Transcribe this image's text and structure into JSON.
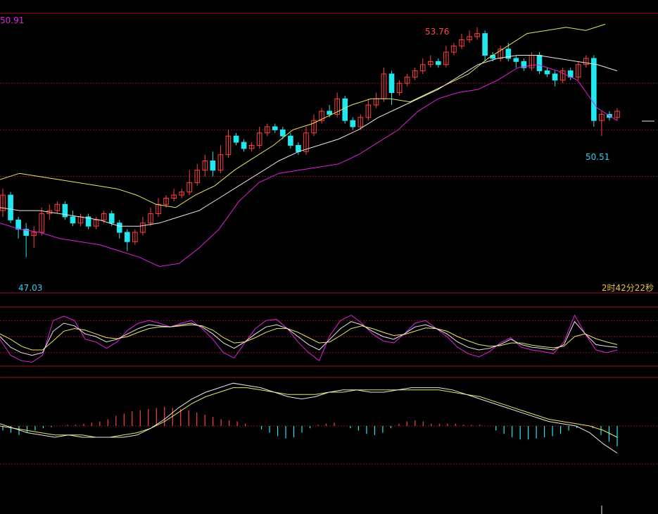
{
  "labels": {
    "top_price": "50.91",
    "high_marker": "53.76",
    "low_marker": "50.51",
    "min_marker": "47.03",
    "countdown": "2时42分22秒"
  },
  "colors": {
    "background": "#000000",
    "frame": "#a01020",
    "grid": "#8a1020",
    "up": "#ff4040",
    "down": "#20e8f0",
    "ma_white": "#e8e8e8",
    "ma_yellow": "#e8e860",
    "band_magenta": "#e020e0",
    "label_magenta": "#e020e0",
    "label_red": "#ff4848",
    "label_cyan": "#30d0f0",
    "label_timer": "#e8c040"
  },
  "chart_data": {
    "type": "candlestick",
    "price_axis": {
      "min": 46.5,
      "max": 55.0,
      "gridlines": [
        53.0,
        51.5,
        50.0
      ]
    },
    "candles": [
      [
        48.9,
        49.4,
        48.7,
        49.6
      ],
      [
        49.4,
        48.6,
        48.5,
        49.5
      ],
      [
        48.6,
        48.3,
        48.0,
        48.7
      ],
      [
        48.3,
        48.1,
        47.4,
        48.5
      ],
      [
        48.1,
        48.2,
        47.7,
        48.4
      ],
      [
        48.2,
        48.8,
        48.1,
        49.0
      ],
      [
        48.8,
        48.9,
        48.6,
        49.1
      ],
      [
        48.9,
        49.1,
        48.8,
        49.2
      ],
      [
        49.1,
        48.7,
        48.6,
        49.2
      ],
      [
        48.7,
        48.5,
        48.4,
        48.9
      ],
      [
        48.5,
        48.7,
        48.4,
        48.8
      ],
      [
        48.7,
        48.4,
        48.3,
        48.8
      ],
      [
        48.4,
        48.6,
        48.3,
        48.7
      ],
      [
        48.6,
        48.8,
        48.5,
        48.9
      ],
      [
        48.8,
        48.5,
        48.4,
        48.9
      ],
      [
        48.5,
        48.2,
        48.0,
        48.6
      ],
      [
        48.2,
        47.9,
        47.6,
        48.3
      ],
      [
        47.9,
        48.2,
        47.8,
        48.3
      ],
      [
        48.2,
        48.5,
        48.1,
        48.7
      ],
      [
        48.5,
        48.8,
        48.4,
        49.0
      ],
      [
        48.8,
        49.1,
        48.7,
        49.3
      ],
      [
        49.1,
        49.3,
        49.0,
        49.4
      ],
      [
        49.3,
        49.4,
        49.2,
        49.6
      ],
      [
        49.4,
        49.5,
        49.3,
        49.6
      ],
      [
        49.5,
        49.8,
        49.4,
        50.2
      ],
      [
        49.8,
        50.2,
        49.7,
        50.4
      ],
      [
        50.2,
        50.5,
        50.0,
        50.7
      ],
      [
        50.5,
        50.2,
        50.0,
        50.8
      ],
      [
        50.2,
        50.7,
        50.1,
        51.0
      ],
      [
        50.7,
        51.3,
        50.6,
        51.5
      ],
      [
        51.3,
        51.1,
        51.0,
        51.4
      ],
      [
        51.1,
        50.9,
        50.8,
        51.2
      ],
      [
        50.9,
        51.0,
        50.8,
        51.1
      ],
      [
        51.0,
        51.4,
        50.9,
        51.6
      ],
      [
        51.4,
        51.6,
        51.3,
        51.7
      ],
      [
        51.6,
        51.5,
        51.4,
        51.7
      ],
      [
        51.5,
        51.3,
        51.2,
        51.6
      ],
      [
        51.3,
        51.0,
        50.9,
        51.4
      ],
      [
        51.0,
        50.8,
        50.7,
        51.1
      ],
      [
        50.8,
        51.4,
        50.7,
        51.6
      ],
      [
        51.4,
        51.8,
        51.3,
        52.0
      ],
      [
        51.8,
        52.1,
        51.7,
        52.2
      ],
      [
        52.1,
        52.0,
        51.9,
        52.3
      ],
      [
        52.0,
        52.5,
        51.9,
        52.7
      ],
      [
        52.5,
        51.8,
        51.7,
        52.6
      ],
      [
        51.8,
        51.6,
        51.5,
        51.9
      ],
      [
        51.6,
        51.9,
        51.5,
        52.0
      ],
      [
        51.9,
        52.3,
        51.8,
        52.5
      ],
      [
        52.3,
        52.5,
        52.2,
        52.7
      ],
      [
        52.5,
        53.3,
        52.4,
        53.5
      ],
      [
        53.3,
        52.7,
        52.3,
        53.4
      ],
      [
        52.7,
        53.0,
        52.6,
        53.1
      ],
      [
        53.0,
        53.2,
        52.9,
        53.3
      ],
      [
        53.2,
        53.4,
        53.1,
        53.5
      ],
      [
        53.4,
        53.6,
        53.3,
        53.8
      ],
      [
        53.6,
        53.7,
        53.5,
        53.9
      ],
      [
        53.7,
        53.6,
        53.5,
        53.8
      ],
      [
        53.6,
        54.0,
        53.5,
        54.2
      ],
      [
        54.0,
        54.2,
        53.9,
        54.3
      ],
      [
        54.2,
        54.4,
        54.1,
        54.6
      ],
      [
        54.4,
        54.5,
        54.3,
        54.7
      ],
      [
        54.5,
        54.6,
        54.4,
        54.8
      ],
      [
        54.6,
        53.9,
        53.7,
        54.7
      ],
      [
        53.9,
        53.8,
        53.7,
        54.0
      ],
      [
        53.8,
        54.1,
        53.7,
        54.2
      ],
      [
        54.1,
        53.8,
        53.7,
        54.3
      ],
      [
        53.8,
        53.7,
        53.5,
        53.9
      ],
      [
        53.7,
        53.5,
        53.4,
        53.8
      ],
      [
        53.5,
        53.9,
        53.4,
        54.0
      ],
      [
        53.9,
        53.4,
        53.3,
        54.0
      ],
      [
        53.4,
        53.3,
        53.2,
        53.5
      ],
      [
        53.3,
        53.1,
        52.9,
        53.4
      ],
      [
        53.1,
        53.4,
        53.0,
        53.5
      ],
      [
        53.4,
        53.2,
        53.1,
        53.5
      ],
      [
        53.2,
        53.6,
        53.1,
        53.7
      ],
      [
        53.6,
        53.8,
        53.5,
        53.9
      ],
      [
        53.8,
        51.8,
        51.6,
        53.9
      ],
      [
        51.8,
        52.0,
        51.3,
        52.1
      ],
      [
        52.0,
        51.9,
        51.8,
        52.1
      ],
      [
        51.9,
        52.1,
        51.8,
        52.2
      ]
    ],
    "upper_band": [
      49.9,
      50.1,
      50.0,
      49.9,
      49.8,
      49.7,
      49.6,
      49.4,
      49.1,
      49.0,
      49.4,
      49.7,
      50.2,
      50.6,
      51.0,
      51.5,
      51.7,
      52.0,
      52.3,
      52.5,
      52.5,
      52.4,
      52.7,
      53.0,
      53.3,
      53.8,
      54.2,
      54.6,
      54.7,
      54.8,
      54.7,
      54.9
    ],
    "mid_band": [
      49.0,
      48.9,
      48.9,
      48.8,
      48.7,
      48.6,
      48.4,
      48.4,
      48.5,
      48.7,
      48.9,
      49.3,
      49.7,
      50.1,
      50.5,
      50.8,
      51.0,
      51.2,
      51.5,
      51.9,
      52.2,
      52.5,
      52.8,
      53.2,
      53.6,
      53.8,
      53.9,
      53.9,
      53.8,
      53.7,
      53.6,
      53.4
    ],
    "lower_band": [
      48.5,
      48.3,
      48.2,
      48.0,
      47.9,
      47.8,
      47.6,
      47.4,
      47.1,
      47.2,
      47.7,
      48.3,
      49.2,
      49.8,
      50.1,
      50.2,
      50.3,
      50.4,
      50.7,
      51.1,
      51.5,
      52.1,
      52.5,
      52.7,
      52.8,
      53.1,
      53.5,
      53.6,
      53.4,
      53.1,
      52.2,
      51.8
    ],
    "kdj": {
      "k": [
        50,
        30,
        20,
        15,
        20,
        60,
        75,
        70,
        55,
        50,
        40,
        45,
        55,
        65,
        72,
        70,
        68,
        72,
        75,
        68,
        55,
        38,
        28,
        40,
        55,
        68,
        72,
        65,
        50,
        35,
        25,
        45,
        65,
        78,
        72,
        60,
        50,
        45,
        55,
        68,
        72,
        65,
        55,
        40,
        30,
        25,
        28,
        35,
        45,
        35,
        30,
        28,
        25,
        35,
        78,
        55,
        35,
        32,
        30
      ],
      "d": [
        55,
        45,
        32,
        25,
        25,
        42,
        60,
        65,
        62,
        55,
        48,
        46,
        50,
        58,
        65,
        68,
        68,
        70,
        72,
        70,
        62,
        48,
        38,
        40,
        48,
        58,
        65,
        65,
        58,
        48,
        38,
        40,
        52,
        65,
        70,
        65,
        58,
        52,
        54,
        60,
        66,
        65,
        60,
        50,
        42,
        35,
        32,
        33,
        38,
        38,
        34,
        31,
        29,
        32,
        50,
        55,
        46,
        40,
        35
      ],
      "j": [
        45,
        15,
        5,
        2,
        15,
        80,
        88,
        80,
        45,
        40,
        28,
        40,
        62,
        75,
        80,
        75,
        68,
        75,
        80,
        65,
        45,
        20,
        10,
        38,
        65,
        80,
        82,
        65,
        40,
        20,
        5,
        52,
        80,
        90,
        75,
        55,
        42,
        38,
        55,
        75,
        80,
        65,
        50,
        30,
        18,
        12,
        22,
        38,
        48,
        30,
        25,
        22,
        18,
        40,
        90,
        55,
        25,
        20,
        25
      ]
    },
    "macd": {
      "dif": [
        0.1,
        -0.1,
        -0.3,
        -0.4,
        -0.5,
        -0.4,
        -0.5,
        -0.5,
        -0.5,
        -0.5,
        -0.4,
        -0.1,
        0.3,
        0.8,
        1.2,
        1.5,
        1.7,
        1.9,
        1.8,
        1.7,
        1.5,
        1.3,
        1.2,
        1.3,
        1.5,
        1.6,
        1.6,
        1.5,
        1.5,
        1.6,
        1.7,
        1.7,
        1.7,
        1.6,
        1.4,
        1.2,
        1.0,
        0.8,
        0.6,
        0.4,
        0.2,
        0.1,
        0.0,
        -0.3,
        -0.8,
        -1.2
      ],
      "dea": [
        0.0,
        -0.1,
        -0.2,
        -0.3,
        -0.4,
        -0.4,
        -0.4,
        -0.5,
        -0.5,
        -0.4,
        -0.3,
        -0.1,
        0.2,
        0.6,
        1.0,
        1.3,
        1.5,
        1.7,
        1.7,
        1.6,
        1.5,
        1.4,
        1.4,
        1.4,
        1.5,
        1.5,
        1.6,
        1.6,
        1.6,
        1.6,
        1.6,
        1.6,
        1.6,
        1.5,
        1.4,
        1.3,
        1.1,
        0.9,
        0.7,
        0.5,
        0.3,
        0.2,
        0.1,
        0.0,
        -0.2,
        -0.5
      ],
      "hist": [
        -0.2,
        -0.3,
        -0.4,
        -0.3,
        -0.2,
        -0.1,
        -0.05,
        0.0,
        0.05,
        0.05,
        0.1,
        0.15,
        0.2,
        0.3,
        0.45,
        0.55,
        0.65,
        0.7,
        0.75,
        0.8,
        0.85,
        0.8,
        0.75,
        0.7,
        0.6,
        0.5,
        0.4,
        0.3,
        0.25,
        0.2,
        0.1,
        0.0,
        -0.15,
        -0.3,
        -0.45,
        -0.55,
        -0.5,
        -0.3,
        -0.1,
        0.05,
        0.1,
        0.15,
        0.0,
        -0.1,
        -0.2,
        -0.35,
        -0.4,
        -0.3,
        -0.1,
        0.1,
        0.2,
        0.25,
        0.2,
        0.1,
        0.1,
        0.1,
        0.1,
        0.05,
        0.05,
        0.05,
        0.0,
        -0.2,
        -0.35,
        -0.5,
        -0.6,
        -0.6,
        -0.55,
        -0.5,
        -0.45,
        -0.35,
        -0.2,
        -0.1,
        0.0,
        -0.1,
        -0.4,
        -0.7,
        -0.9
      ]
    }
  }
}
